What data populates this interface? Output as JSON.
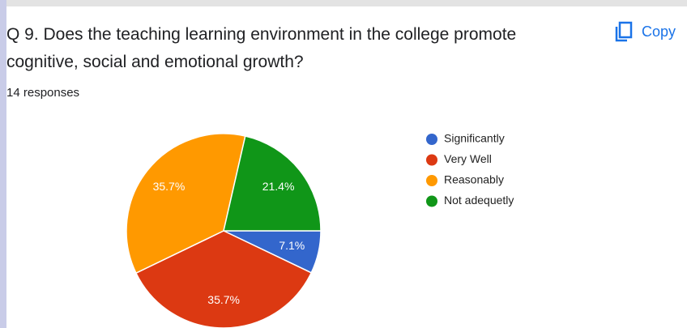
{
  "question": "Q 9. Does the teaching learning environment in the college promote cognitive, social and emotional growth?",
  "responses": "14 responses",
  "copy_button": "Copy",
  "chart_data": {
    "type": "pie",
    "categories": [
      "Significantly",
      "Very Well",
      "Reasonably",
      "Not adequetly"
    ],
    "values": [
      7.1,
      35.7,
      35.7,
      21.4
    ],
    "value_labels": [
      "7.1%",
      "35.7%",
      "35.7%",
      "21.4%"
    ],
    "colors": [
      "#3366cc",
      "#dc3912",
      "#ff9900",
      "#109618"
    ],
    "legend": "right"
  }
}
